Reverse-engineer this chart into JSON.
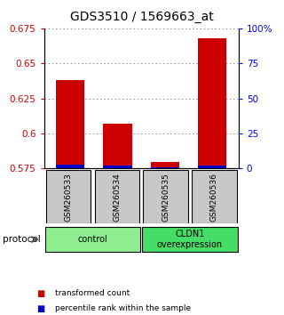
{
  "title": "GDS3510 / 1569663_at",
  "samples": [
    "GSM260533",
    "GSM260534",
    "GSM260535",
    "GSM260536"
  ],
  "red_values": [
    0.638,
    0.607,
    0.58,
    0.668
  ],
  "blue_values": [
    0.578,
    0.577,
    0.576,
    0.577
  ],
  "ylim_left": [
    0.575,
    0.675
  ],
  "ylim_right": [
    0,
    100
  ],
  "yticks_left": [
    0.575,
    0.6,
    0.625,
    0.65,
    0.675
  ],
  "ytick_labels_left": [
    "0.575",
    "0.6",
    "0.625",
    "0.65",
    "0.675"
  ],
  "yticks_right": [
    0,
    25,
    50,
    75,
    100
  ],
  "ytick_labels_right": [
    "0",
    "25",
    "50",
    "75",
    "100%"
  ],
  "bar_bottom": 0.575,
  "groups": [
    {
      "label": "control",
      "start": 0,
      "end": 2,
      "color": "#90ee90"
    },
    {
      "label": "CLDN1\noverexpression",
      "start": 2,
      "end": 4,
      "color": "#44dd66"
    }
  ],
  "red_color": "#cc0000",
  "blue_color": "#0000cc",
  "bar_width": 0.6,
  "grid_color": "#888888",
  "sample_box_color": "#c8c8c8",
  "protocol_label": "protocol",
  "legend_red": "transformed count",
  "legend_blue": "percentile rank within the sample",
  "title_fontsize": 10,
  "axis_fontsize": 7.5,
  "label_fontsize": 7.5
}
